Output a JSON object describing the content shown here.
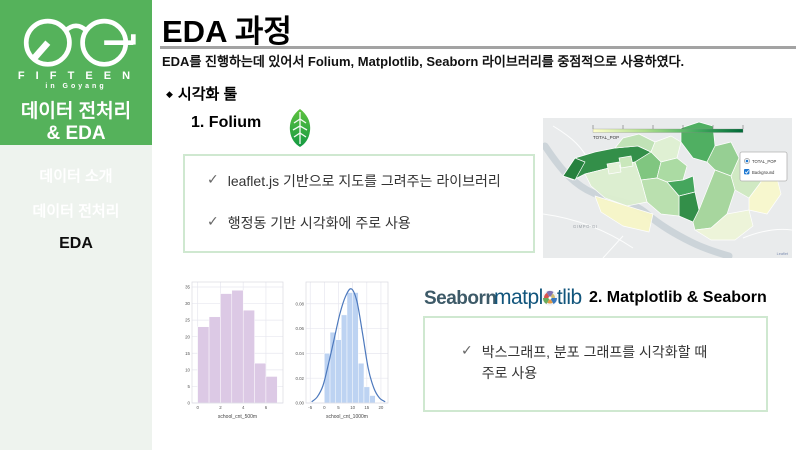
{
  "ui": {
    "check_glyph": "✓",
    "diamond_glyph": "◆"
  },
  "colors": {
    "brand_green": "#55b25b",
    "sidebar_bg": "#eef3ee",
    "box_border_green": "#cfe8d0",
    "seaborn_wordmark_color": "#3d5a68",
    "matplotlib_wordmark_color": "#11557c"
  },
  "sidebar": {
    "logo": {
      "brand_line1": "F I F T E E N",
      "brand_line2": "in  Goyang",
      "title_line1": "데이터 전처리",
      "title_line2": "& EDA"
    },
    "menu": [
      {
        "label": "데이터 소개",
        "active": false
      },
      {
        "label": "데이터 전처리",
        "active": false
      },
      {
        "label": "EDA",
        "active": true
      }
    ]
  },
  "header": {
    "title": "EDA 과정",
    "subtitle": "EDA를 진행하는데 있어서 Folium, Matplotlib, Seaborn 라이브러리를 중점적으로 사용하였다."
  },
  "section": {
    "bullet": "◆",
    "label": "시각화 툴"
  },
  "folium": {
    "heading": "1. Folium",
    "points": [
      "leaflet.js 기반으로 지도를 그려주는 라이브러리",
      "행정동 기반 시각화에 주로 사용"
    ]
  },
  "map": {
    "legend_label": "TOTAL_POP",
    "layer_control": [
      "TOTAL_POP",
      "Background"
    ],
    "place_label": "GIMPO-GI",
    "attribution": "Leaflet"
  },
  "mpl": {
    "seaborn_wordmark": "Seaborn",
    "matplotlib_wordmark_pre": "matpl",
    "matplotlib_wordmark_post": "tlib",
    "heading": "2. Matplotlib & Seaborn",
    "point": "박스그래프, 분포 그래프를 시각화할 때\n주로 사용"
  },
  "chart_data": [
    {
      "type": "bar",
      "title": "",
      "xlabel": "school_cnt_500m",
      "ylabel": "",
      "xlim": [
        -0.5,
        7.5
      ],
      "ylim": [
        0,
        36.5
      ],
      "x_ticks": [
        0,
        2,
        4,
        6
      ],
      "y_ticks": [
        0,
        5,
        10,
        15,
        20,
        25,
        30,
        35
      ],
      "y_tick_labels": [
        "0",
        "5",
        "10",
        "15",
        "20",
        "25",
        "30",
        "35"
      ],
      "bin_edges": [
        0,
        1,
        2,
        3,
        4,
        5,
        6,
        7
      ],
      "values": [
        23,
        26,
        33,
        34,
        28,
        12,
        8
      ],
      "bar_color": "#dcc9e5",
      "grid": true,
      "margin_left": 13
    },
    {
      "type": "bar",
      "title": "",
      "xlabel": "school_cnt_1000m",
      "ylabel": "",
      "xlim": [
        -6.5,
        22.5
      ],
      "ylim": [
        0,
        0.0975
      ],
      "x_ticks": [
        -5,
        0,
        5,
        10,
        15,
        20
      ],
      "y_ticks": [
        0,
        0.02,
        0.04,
        0.06,
        0.08
      ],
      "y_tick_labels": [
        "0.00",
        "0.02",
        "0.04",
        "0.06",
        "0.08"
      ],
      "bin_edges": [
        0,
        2,
        4,
        6,
        8,
        10,
        12,
        14,
        16,
        18
      ],
      "values": [
        0.04,
        0.057,
        0.051,
        0.071,
        0.089,
        0.089,
        0.032,
        0.013,
        0.006
      ],
      "bar_color": "#bdd3f2",
      "kde_color": "#4d79bd",
      "kde_points": [
        [
          -4.5,
          0.001
        ],
        [
          -2.5,
          0.005
        ],
        [
          -0.5,
          0.014
        ],
        [
          1.5,
          0.032
        ],
        [
          3.5,
          0.052
        ],
        [
          5.5,
          0.072
        ],
        [
          7.5,
          0.086
        ],
        [
          9.5,
          0.092
        ],
        [
          11.5,
          0.082
        ],
        [
          13.5,
          0.056
        ],
        [
          15.5,
          0.028
        ],
        [
          17.5,
          0.012
        ],
        [
          19.5,
          0.004
        ],
        [
          21.5,
          0.001
        ]
      ],
      "grid": true,
      "margin_left": 17
    }
  ]
}
